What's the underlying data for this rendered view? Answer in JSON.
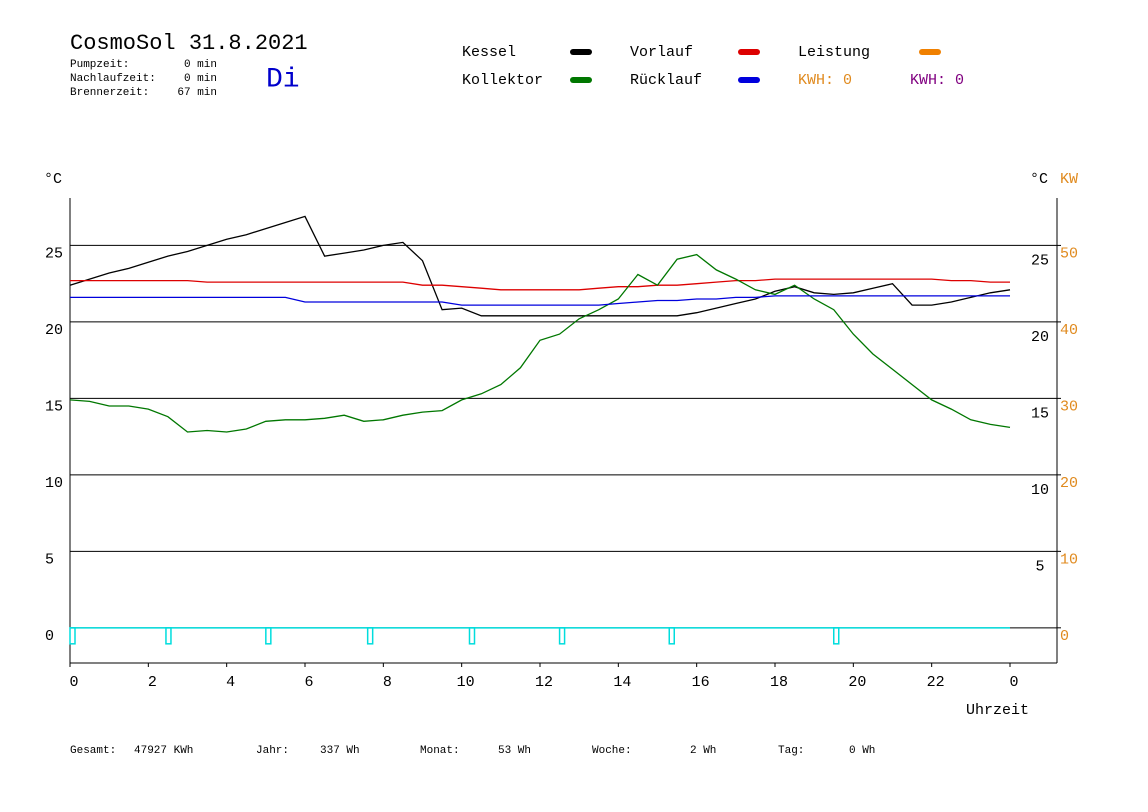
{
  "chart_data": {
    "type": "line",
    "title": "CosmoSol 31.8.2021",
    "day": "Di",
    "stats": [
      [
        "Pumpzeit:",
        "0 min"
      ],
      [
        "Nachlaufzeit:",
        "0 min"
      ],
      [
        "Brennerzeit:",
        "67 min"
      ]
    ],
    "kwh_labels": [
      {
        "text": "KWH: 0",
        "color": "#e08a1e"
      },
      {
        "text": "KWH: 0",
        "color": "#800080"
      }
    ],
    "y_label": "°C",
    "y2_unit_label": "°C",
    "y2_label": "KW",
    "x_label": "Uhrzeit",
    "footer": [
      [
        "Gesamt:",
        "47927 KWh"
      ],
      [
        "Jahr:",
        "337 Wh"
      ],
      [
        "Monat:",
        "53 Wh"
      ],
      [
        "Woche:",
        "2 Wh"
      ],
      [
        "Tag:",
        "0 Wh"
      ]
    ],
    "xlim": [
      0,
      25.2
    ],
    "ylim": [
      -2.3,
      28.1
    ],
    "y2lim": [
      -4.6,
      56.2
    ],
    "xticks": [
      0,
      2,
      4,
      6,
      8,
      10,
      12,
      14,
      16,
      18,
      20,
      22,
      {
        "value": 24,
        "label": "0"
      }
    ],
    "yticks": [
      0,
      5,
      10,
      15,
      20,
      25
    ],
    "y2ticks": [
      0,
      10,
      20,
      30,
      40,
      50
    ],
    "grid": true,
    "x": [
      0,
      0.5,
      1,
      1.5,
      2,
      2.5,
      3,
      3.5,
      4,
      4.5,
      5,
      5.5,
      6,
      6.5,
      7,
      7.5,
      8,
      8.5,
      9,
      9.5,
      10,
      10.5,
      11,
      11.5,
      12,
      12.5,
      13,
      13.5,
      14,
      14.5,
      15,
      15.5,
      16,
      16.5,
      17,
      17.5,
      18,
      18.5,
      19,
      19.5,
      20,
      20.5,
      21,
      21.5,
      22,
      22.5,
      23,
      23.5,
      24
    ],
    "series": [
      {
        "name": "Kessel",
        "color": "#000000",
        "values": [
          22.4,
          22.8,
          23.2,
          23.5,
          23.9,
          24.3,
          24.6,
          25.0,
          25.4,
          25.7,
          26.1,
          26.5,
          26.9,
          24.3,
          24.5,
          24.7,
          25.0,
          25.2,
          24.0,
          20.8,
          20.9,
          20.4,
          20.4,
          20.4,
          20.4,
          20.4,
          20.4,
          20.4,
          20.4,
          20.4,
          20.4,
          20.4,
          20.6,
          20.9,
          21.2,
          21.5,
          22.0,
          22.3,
          21.9,
          21.8,
          21.9,
          22.2,
          22.5,
          21.1,
          21.1,
          21.3,
          21.6,
          21.9,
          22.1
        ]
      },
      {
        "name": "Vorlauf",
        "color": "#dd0000",
        "values": [
          22.7,
          22.7,
          22.7,
          22.7,
          22.7,
          22.7,
          22.7,
          22.6,
          22.6,
          22.6,
          22.6,
          22.6,
          22.6,
          22.6,
          22.6,
          22.6,
          22.6,
          22.6,
          22.4,
          22.4,
          22.3,
          22.2,
          22.1,
          22.1,
          22.1,
          22.1,
          22.1,
          22.2,
          22.3,
          22.3,
          22.4,
          22.4,
          22.5,
          22.6,
          22.7,
          22.7,
          22.8,
          22.8,
          22.8,
          22.8,
          22.8,
          22.8,
          22.8,
          22.8,
          22.8,
          22.7,
          22.7,
          22.6,
          22.6
        ]
      },
      {
        "name": "Leistung",
        "color": "#f08000",
        "axis": "y2",
        "values": [
          null,
          null,
          null,
          null,
          null,
          null,
          null,
          null,
          null,
          null,
          null,
          null,
          null,
          null,
          null,
          null,
          null,
          null,
          null,
          null,
          null,
          null,
          null,
          null,
          null,
          null,
          null,
          null,
          null,
          null,
          null,
          null,
          null,
          null,
          null,
          null,
          null,
          null,
          null,
          null,
          null,
          null,
          null,
          null,
          null,
          null,
          null,
          null,
          null
        ]
      },
      {
        "name": "Kollektor",
        "color": "#007700",
        "values": [
          14.9,
          14.8,
          14.5,
          14.5,
          14.3,
          13.8,
          12.8,
          12.9,
          12.8,
          13.0,
          13.5,
          13.6,
          13.6,
          13.7,
          13.9,
          13.5,
          13.6,
          13.9,
          14.1,
          14.2,
          14.9,
          15.3,
          15.9,
          17.0,
          18.8,
          19.2,
          20.2,
          20.8,
          21.5,
          23.1,
          22.4,
          24.1,
          24.4,
          23.4,
          22.8,
          22.1,
          21.8,
          22.4,
          21.5,
          20.8,
          19.2,
          17.9,
          16.9,
          15.9,
          14.9,
          14.3,
          13.6,
          13.3,
          13.1
        ]
      },
      {
        "name": "Rücklauf",
        "color": "#0000dd",
        "values": [
          21.6,
          21.6,
          21.6,
          21.6,
          21.6,
          21.6,
          21.6,
          21.6,
          21.6,
          21.6,
          21.6,
          21.6,
          21.3,
          21.3,
          21.3,
          21.3,
          21.3,
          21.3,
          21.3,
          21.3,
          21.1,
          21.1,
          21.1,
          21.1,
          21.1,
          21.1,
          21.1,
          21.1,
          21.2,
          21.3,
          21.4,
          21.4,
          21.5,
          21.5,
          21.6,
          21.6,
          21.7,
          21.7,
          21.7,
          21.7,
          21.7,
          21.7,
          21.7,
          21.7,
          21.7,
          21.7,
          21.7,
          21.7,
          21.7
        ]
      }
    ],
    "pump": {
      "color": "#00dddd",
      "starts": [
        0,
        2.45,
        5,
        7.6,
        10.2,
        12.5,
        15.3,
        19.5
      ]
    }
  }
}
